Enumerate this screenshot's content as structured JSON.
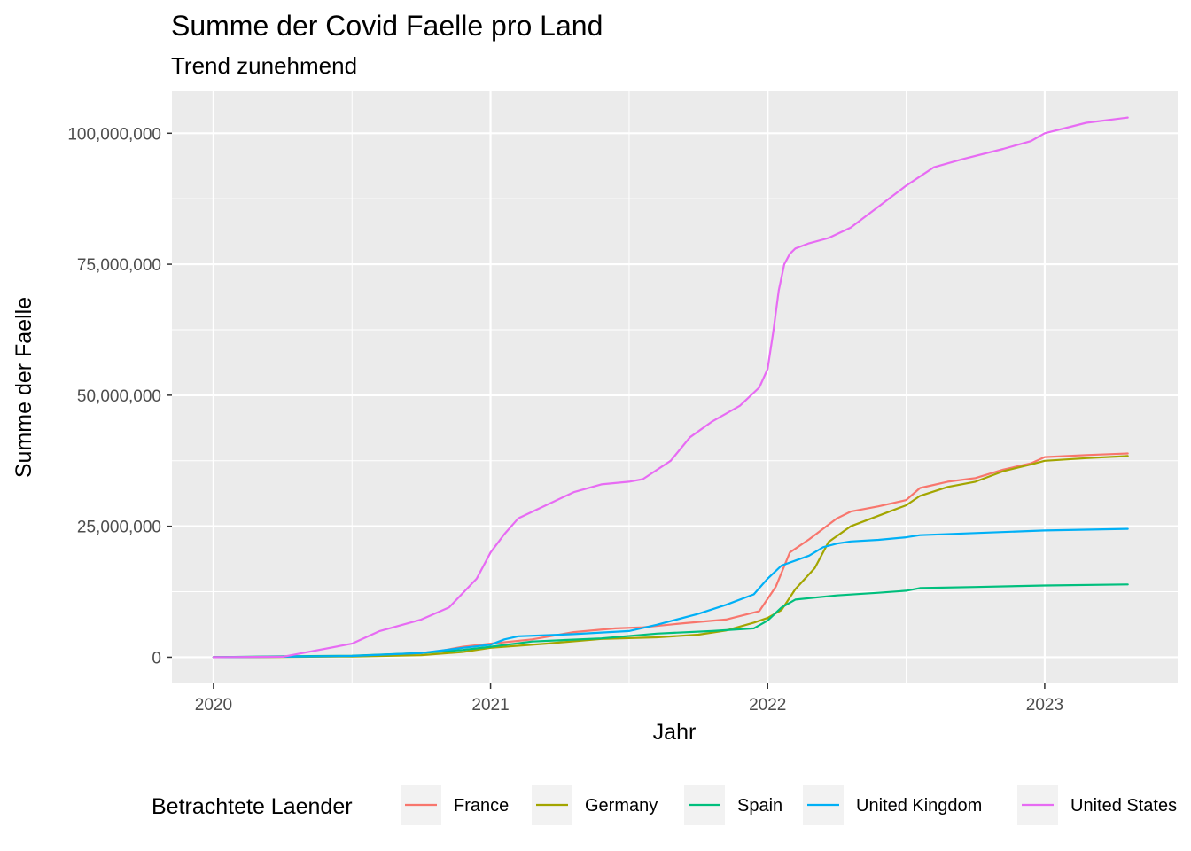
{
  "chart_data": {
    "type": "line",
    "title": "Summe der Covid Faelle pro Land",
    "subtitle": "Trend zunehmend",
    "xlabel": "Jahr",
    "ylabel": "Summe der Faelle",
    "xlim": [
      2019.85,
      2023.48
    ],
    "ylim": [
      -5000000,
      108000000
    ],
    "x_ticks": [
      2020,
      2021,
      2022,
      2023
    ],
    "x_tick_labels": [
      "2020",
      "2021",
      "2022",
      "2023"
    ],
    "y_ticks": [
      0,
      25000000,
      50000000,
      75000000,
      100000000
    ],
    "y_tick_labels": [
      "0",
      "25,000,000",
      "50,000,000",
      "75,000,000",
      "100,000,000"
    ],
    "grid": true,
    "legend": {
      "title": "Betrachtete Laender",
      "position": "bottom"
    },
    "series": [
      {
        "name": "France",
        "color": "#F8766D",
        "x": [
          2020.0,
          2020.25,
          2020.5,
          2020.75,
          2020.82,
          2020.9,
          2021.0,
          2021.15,
          2021.3,
          2021.45,
          2021.55,
          2021.7,
          2021.85,
          2021.97,
          2022.03,
          2022.08,
          2022.15,
          2022.25,
          2022.3,
          2022.4,
          2022.5,
          2022.55,
          2022.65,
          2022.75,
          2022.85,
          2022.95,
          2023.0,
          2023.15,
          2023.3
        ],
        "values": [
          0,
          100000,
          200000,
          800000,
          1200000,
          2000000,
          2600000,
          3400000,
          4800000,
          5500000,
          5700000,
          6500000,
          7200000,
          8800000,
          13500000,
          20000000,
          22500000,
          26500000,
          27800000,
          28800000,
          30000000,
          32300000,
          33500000,
          34200000,
          35800000,
          37000000,
          38200000,
          38600000,
          38900000
        ]
      },
      {
        "name": "Germany",
        "color": "#A3A500",
        "x": [
          2020.0,
          2020.25,
          2020.5,
          2020.75,
          2020.9,
          2021.0,
          2021.2,
          2021.4,
          2021.6,
          2021.75,
          2021.85,
          2021.95,
          2022.0,
          2022.05,
          2022.1,
          2022.17,
          2022.22,
          2022.3,
          2022.4,
          2022.5,
          2022.55,
          2022.65,
          2022.75,
          2022.85,
          2022.95,
          2023.0,
          2023.15,
          2023.3
        ],
        "values": [
          0,
          50000,
          150000,
          400000,
          1000000,
          1800000,
          2600000,
          3500000,
          3800000,
          4300000,
          5100000,
          6600000,
          7500000,
          9000000,
          13000000,
          17000000,
          22000000,
          25000000,
          27000000,
          29000000,
          30800000,
          32500000,
          33500000,
          35500000,
          36800000,
          37500000,
          38000000,
          38400000
        ]
      },
      {
        "name": "Spain",
        "color": "#00BF7D",
        "x": [
          2020.0,
          2020.25,
          2020.5,
          2020.75,
          2020.9,
          2021.0,
          2021.15,
          2021.4,
          2021.6,
          2021.8,
          2021.95,
          2022.0,
          2022.05,
          2022.1,
          2022.25,
          2022.4,
          2022.5,
          2022.55,
          2022.75,
          2023.0,
          2023.3
        ],
        "values": [
          0,
          200000,
          300000,
          800000,
          1400000,
          2000000,
          3000000,
          3600000,
          4500000,
          5000000,
          5500000,
          7000000,
          9500000,
          11000000,
          11800000,
          12300000,
          12700000,
          13200000,
          13400000,
          13700000,
          13900000
        ]
      },
      {
        "name": "United Kingdom",
        "color": "#00B0F6",
        "x": [
          2020.0,
          2020.25,
          2020.5,
          2020.75,
          2020.9,
          2021.0,
          2021.05,
          2021.1,
          2021.3,
          2021.5,
          2021.6,
          2021.75,
          2021.85,
          2021.95,
          2022.0,
          2022.05,
          2022.15,
          2022.2,
          2022.25,
          2022.3,
          2022.4,
          2022.5,
          2022.55,
          2022.75,
          2023.0,
          2023.3
        ],
        "values": [
          0,
          100000,
          250000,
          800000,
          1800000,
          2400000,
          3400000,
          4000000,
          4400000,
          5000000,
          6200000,
          8300000,
          10000000,
          12000000,
          15000000,
          17500000,
          19400000,
          21000000,
          21700000,
          22100000,
          22400000,
          22900000,
          23300000,
          23700000,
          24200000,
          24500000
        ]
      },
      {
        "name": "United States",
        "color": "#E76BF3",
        "x": [
          2020.0,
          2020.25,
          2020.5,
          2020.6,
          2020.75,
          2020.85,
          2020.95,
          2021.0,
          2021.05,
          2021.1,
          2021.2,
          2021.3,
          2021.4,
          2021.5,
          2021.55,
          2021.65,
          2021.72,
          2021.8,
          2021.9,
          2021.97,
          2022.0,
          2022.02,
          2022.04,
          2022.06,
          2022.08,
          2022.1,
          2022.15,
          2022.22,
          2022.3,
          2022.4,
          2022.5,
          2022.6,
          2022.7,
          2022.85,
          2022.95,
          2023.0,
          2023.15,
          2023.3
        ],
        "values": [
          0,
          100000,
          2600000,
          5000000,
          7200000,
          9500000,
          15000000,
          20000000,
          23500000,
          26500000,
          29000000,
          31500000,
          33000000,
          33500000,
          34000000,
          37500000,
          42000000,
          45000000,
          48000000,
          51500000,
          55000000,
          62000000,
          70000000,
          75000000,
          77000000,
          78000000,
          79000000,
          80000000,
          82000000,
          86000000,
          90000000,
          93500000,
          95000000,
          97000000,
          98500000,
          100000000,
          102000000,
          103000000
        ]
      }
    ]
  }
}
